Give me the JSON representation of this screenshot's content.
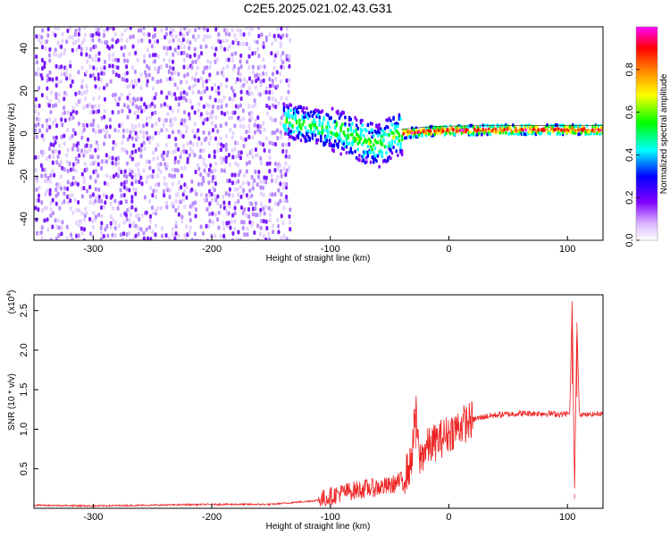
{
  "title": "C2E5.2025.021.02.43.G31",
  "chart_data": [
    {
      "type": "heatmap",
      "xlabel": "Height of straight line (km)",
      "ylabel": "Frequency (Hz)",
      "xlim": [
        -350,
        130
      ],
      "ylim": [
        -50,
        50
      ],
      "xticks": [
        -300,
        -200,
        -100,
        0,
        100
      ],
      "yticks": [
        -40,
        -20,
        0,
        20,
        40
      ],
      "colorbar": {
        "label": "Normalized spectral amplitude",
        "range": [
          0,
          1
        ],
        "ticks": [
          "0.0",
          "0.2",
          "0.4",
          "0.6",
          "0.8"
        ],
        "colors": [
          "#ffffff",
          "#d9b3ff",
          "#8000ff",
          "#0000ff",
          "#00ffff",
          "#00ff00",
          "#ffff00",
          "#ff8000",
          "#ff0000",
          "#ff00ff"
        ]
      },
      "center_line": {
        "x": [
          -140,
          -120,
          -100,
          -80,
          -60,
          -50,
          -40,
          -20,
          0,
          50,
          100,
          130
        ],
        "y": [
          6,
          4,
          2,
          -2,
          -6,
          -2,
          0,
          1,
          1.5,
          1.8,
          1.8,
          1.8
        ]
      },
      "noise_region_x": [
        -350,
        -135
      ],
      "grid": false
    },
    {
      "type": "line",
      "xlabel": "Height of straight line (km)",
      "ylabel": "SNR (10 * v/v)",
      "y_multiplier": "(x10",
      "y_multiplier_exp": "4",
      "y_multiplier_close": ")",
      "xlim": [
        -350,
        130
      ],
      "ylim": [
        0,
        2.7
      ],
      "xticks": [
        -300,
        -200,
        -100,
        0,
        100
      ],
      "yticks": [
        0.5,
        1.0,
        1.5,
        2.0,
        2.5
      ],
      "series": [
        {
          "color": "#ee2222",
          "x": [
            -350,
            -300,
            -250,
            -200,
            -150,
            -110,
            -90,
            -70,
            -50,
            -40,
            -32,
            -28,
            -25,
            -20,
            -10,
            0,
            10,
            20,
            30,
            40,
            60,
            80,
            95,
            102,
            104,
            106,
            108,
            110,
            115,
            130
          ],
          "y": [
            0.04,
            0.03,
            0.04,
            0.05,
            0.05,
            0.1,
            0.2,
            0.25,
            0.28,
            0.35,
            0.55,
            1.26,
            0.6,
            0.75,
            0.85,
            0.95,
            1.05,
            1.12,
            1.16,
            1.18,
            1.2,
            1.2,
            1.19,
            1.2,
            2.62,
            0.2,
            2.35,
            1.2,
            1.18,
            1.2
          ]
        }
      ],
      "grid": false
    }
  ]
}
